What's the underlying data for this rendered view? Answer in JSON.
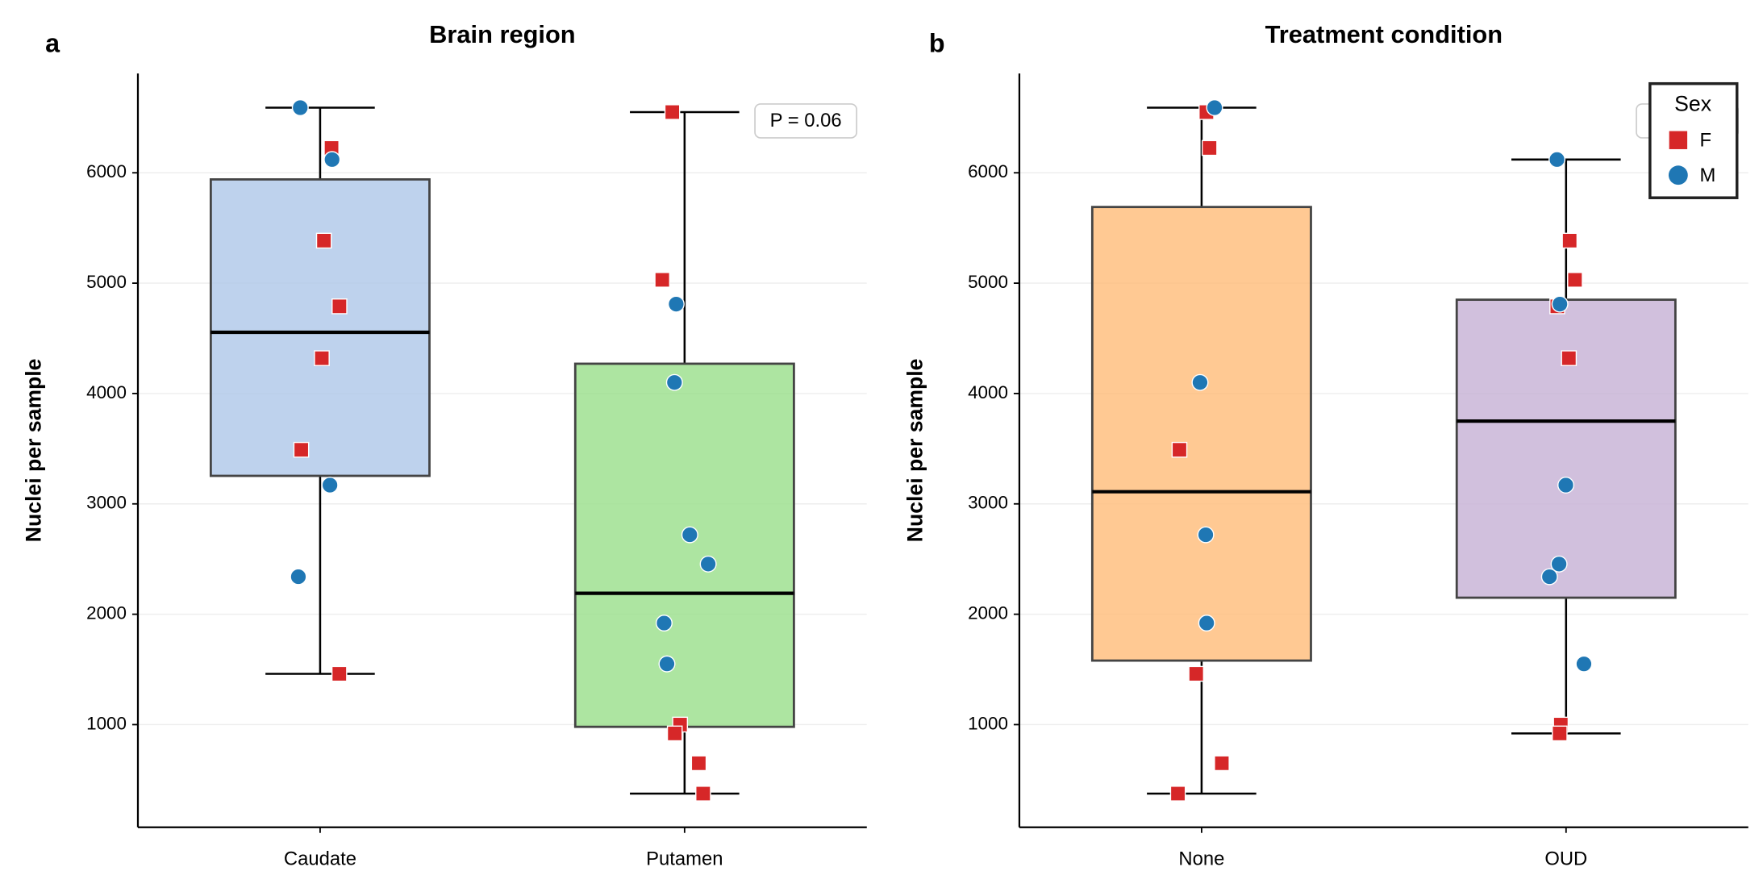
{
  "chart_data": [
    {
      "type": "box",
      "panel_label": "a",
      "title": "Brain region",
      "ylabel": "Nuclei per sample",
      "categories": [
        "Caudate",
        "Putamen"
      ],
      "box_colors": [
        "#aec7e8",
        "#98df8a"
      ],
      "boxes": [
        {
          "whislo": 1460,
          "q1": 3254,
          "med": 4555,
          "q3": 5940,
          "whishi": 6590
        },
        {
          "whislo": 375,
          "q1": 980,
          "med": 2190,
          "q3": 4270,
          "whishi": 6550
        }
      ],
      "series": [
        {
          "name": "F",
          "color": "#d62728",
          "marker": "square",
          "values": [
            [
              6225,
              5385,
              4790,
              4320,
              3490,
              1460
            ],
            [
              6550,
              5030,
              1000,
              920,
              650,
              375
            ]
          ]
        },
        {
          "name": "M",
          "color": "#1f77b4",
          "marker": "circle",
          "values": [
            [
              6590,
              6120,
              3170,
              2340
            ],
            [
              4810,
              4100,
              2720,
              2455,
              1920,
              1550
            ]
          ]
        }
      ],
      "annotation": "P = 0.06",
      "ylim": [
        70,
        6900
      ],
      "yticks": [
        1000,
        2000,
        3000,
        4000,
        5000,
        6000
      ],
      "grid": true
    },
    {
      "type": "box",
      "panel_label": "b",
      "title": "Treatment condition",
      "ylabel": "Nuclei per sample",
      "categories": [
        "None",
        "OUD"
      ],
      "box_colors": [
        "#ffbb78",
        "#c5b0d5"
      ],
      "boxes": [
        {
          "whislo": 375,
          "q1": 1580,
          "med": 3110,
          "q3": 5690,
          "whishi": 6590
        },
        {
          "whislo": 920,
          "q1": 2150,
          "med": 3750,
          "q3": 4850,
          "whishi": 6120
        }
      ],
      "series": [
        {
          "name": "F",
          "color": "#d62728",
          "marker": "square",
          "values": [
            [
              6550,
              6225,
              3490,
              1460,
              650,
              375
            ],
            [
              5385,
              5030,
              4790,
              4320,
              1000,
              920
            ]
          ]
        },
        {
          "name": "M",
          "color": "#1f77b4",
          "marker": "circle",
          "values": [
            [
              6590,
              4100,
              2720,
              1920
            ],
            [
              6120,
              4810,
              3170,
              2455,
              2340,
              1550
            ]
          ]
        }
      ],
      "annotation": "P = 0.92",
      "ylim": [
        70,
        6900
      ],
      "yticks": [
        1000,
        2000,
        3000,
        4000,
        5000,
        6000
      ],
      "grid": true,
      "legend": {
        "title": "Sex",
        "position": "upper right"
      }
    }
  ]
}
